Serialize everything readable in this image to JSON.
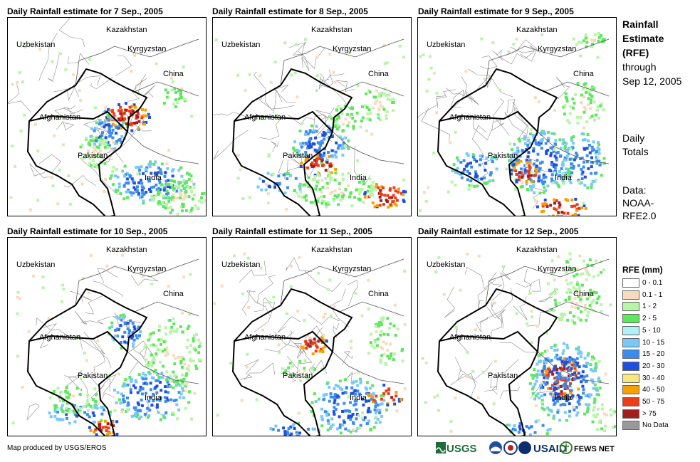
{
  "panels": [
    {
      "title": "Daily Rainfall estimate for 7 Sep., 2005",
      "date": "7 Sep., 2005"
    },
    {
      "title": "Daily Rainfall estimate for 8 Sep., 2005",
      "date": "8 Sep., 2005"
    },
    {
      "title": "Daily Rainfall estimate for 9 Sep., 2005",
      "date": "9 Sep., 2005"
    },
    {
      "title": "Daily Rainfall estimate for 10 Sep., 2005",
      "date": "10 Sep., 2005"
    },
    {
      "title": "Daily Rainfall estimate for 11 Sep., 2005",
      "date": "11 Sep., 2005"
    },
    {
      "title": "Daily Rainfall estimate for 12 Sep., 2005",
      "date": "12 Sep., 2005"
    }
  ],
  "map_labels": {
    "kazakhstan": "Kazakhstan",
    "uzbekistan": "Uzbekistan",
    "kyrgyzstan": "Kyrgyzstan",
    "china": "China",
    "afghanistan": "Afghanistan",
    "pakistan": "Pakistan",
    "india": "India"
  },
  "sidebar": {
    "heading_lines": [
      "Rainfall",
      "Estimate",
      "(RFE)"
    ],
    "through_lines": [
      "through",
      "Sep 12, 2005"
    ],
    "totals_lines": [
      "Daily",
      "Totals"
    ],
    "data_lines": [
      "Data:",
      "NOAA-",
      "RFE2.0"
    ]
  },
  "legend": {
    "title": "RFE (mm)",
    "items": [
      {
        "label": "0 - 0.1",
        "color": "#ffffff"
      },
      {
        "label": "0.1 - 1",
        "color": "#f5dcbc"
      },
      {
        "label": "1 - 2",
        "color": "#b8f5a8"
      },
      {
        "label": "2 - 5",
        "color": "#5ee65e"
      },
      {
        "label": "5 - 10",
        "color": "#b0f0f8"
      },
      {
        "label": "10 - 15",
        "color": "#78c8f8"
      },
      {
        "label": "15 - 20",
        "color": "#3c8cf0"
      },
      {
        "label": "20 - 30",
        "color": "#1e50dc"
      },
      {
        "label": "30 - 40",
        "color": "#f8e680"
      },
      {
        "label": "40 - 50",
        "color": "#f8a000"
      },
      {
        "label": "50 - 75",
        "color": "#f03c14"
      },
      {
        "label": "> 75",
        "color": "#a01e1e"
      },
      {
        "label": "No Data",
        "color": "#999999"
      }
    ]
  },
  "credit": "Map produced by USGS/EROS",
  "logos": {
    "usgs": "USGS",
    "usaid": "USAID",
    "fewsnet": "FEWS NET"
  }
}
